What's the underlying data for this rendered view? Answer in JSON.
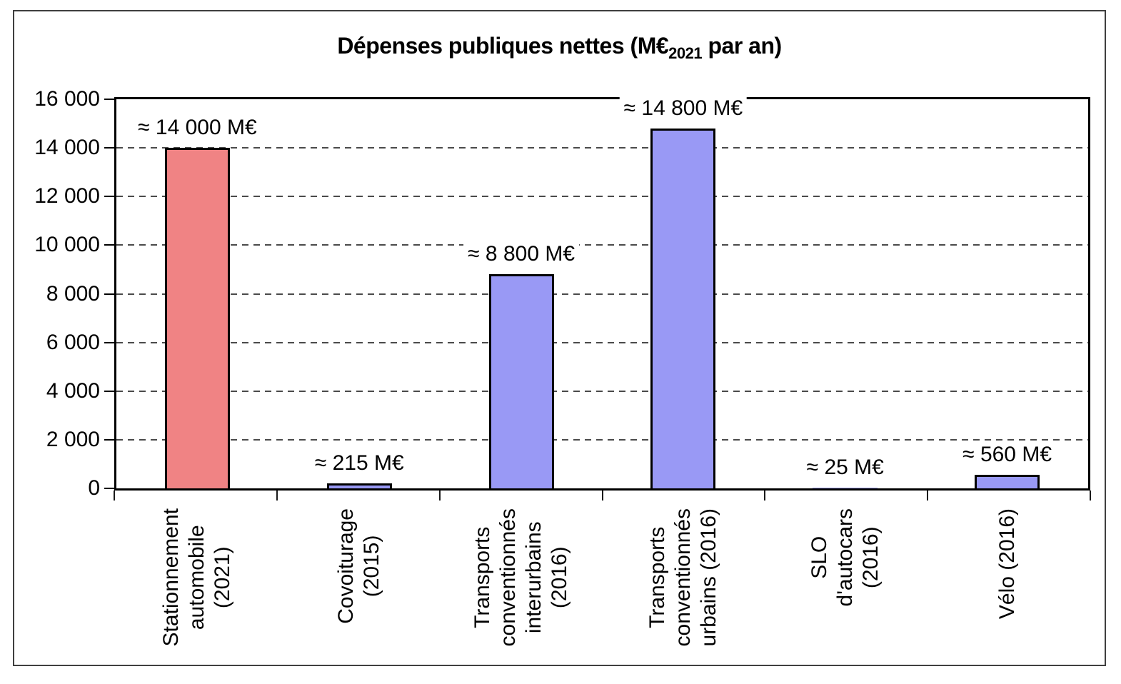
{
  "chart_data": {
    "type": "bar",
    "title": {
      "main": "Dépenses publiques nettes (M€",
      "subscript": "2021",
      "suffix": " par an)"
    },
    "xlabel": "",
    "ylabel": "",
    "ylim": [
      0,
      16000
    ],
    "ytick_values": [
      0,
      2000,
      4000,
      6000,
      8000,
      10000,
      12000,
      14000,
      16000
    ],
    "ytick_labels": [
      "0",
      "2 000",
      "4 000",
      "6 000",
      "8 000",
      "10 000",
      "12 000",
      "14 000",
      "16 000"
    ],
    "grid": {
      "horizontal": true,
      "style": "dashed",
      "color": "#4a4a4a"
    },
    "legend": "none",
    "categories": [
      {
        "id": "stationnement-automobile",
        "label": "Stationnement\nautomobile\n(2021)",
        "value": 14000,
        "value_label": "≈ 14 000 M€",
        "color": "#F08384"
      },
      {
        "id": "covoiturage",
        "label": "Covoiturage\n(2015)",
        "value": 215,
        "value_label": "≈ 215 M€",
        "color": "#9999F5"
      },
      {
        "id": "transports-conventionnes-interurbains",
        "label": "Transports\nconventionnés\ninterurbains\n(2016)",
        "value": 8800,
        "value_label": "≈ 8 800 M€",
        "color": "#9999F5"
      },
      {
        "id": "transports-conventionnes-urbains",
        "label": "Transports\nconventionnés\nurbains (2016)",
        "value": 14800,
        "value_label": "≈ 14 800 M€",
        "color": "#9999F5"
      },
      {
        "id": "slo-autocars",
        "label": "SLO\nd'autocars\n(2016)",
        "value": 25,
        "value_label": "≈ 25 M€",
        "color": "#9999F5"
      },
      {
        "id": "velo",
        "label": "Vélo (2016)",
        "value": 560,
        "value_label": "≈ 560 M€",
        "color": "#9999F5"
      }
    ],
    "colors": {
      "bar_default": "#9999F5",
      "bar_highlight": "#F08384",
      "bar_border": "#000000",
      "axis": "#000000",
      "gridline": "#4a4a4a",
      "frame": "#3f3f3f",
      "background": "#ffffff"
    }
  }
}
